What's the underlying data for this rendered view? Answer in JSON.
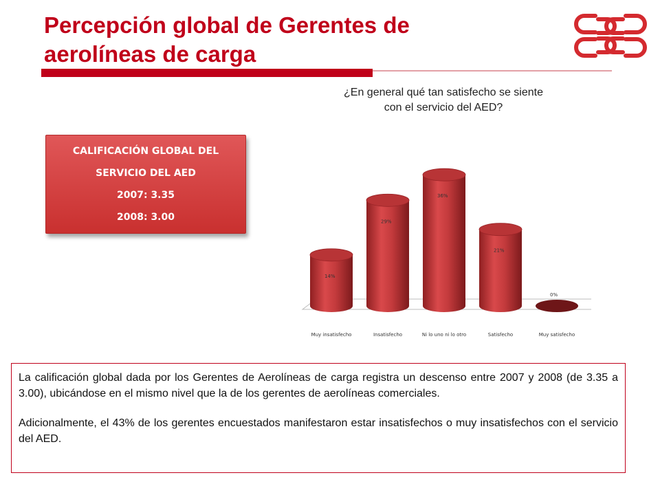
{
  "slide": {
    "title_line1": "Percepción  global de Gerentes de",
    "title_line2": "aerolíneas de carga",
    "brand_color": "#c0001a"
  },
  "score_box": {
    "line1": "CALIFICACIÓN GLOBAL DEL",
    "line2": "SERVICIO DEL AED",
    "line3": "2007: 3.35",
    "line4": "2008: 3.00"
  },
  "question": {
    "line1": "¿En general qué tan satisfecho se siente",
    "line2": "con el servicio del AED?"
  },
  "chart_data": {
    "type": "bar",
    "style": "3d-cylinder",
    "categories": [
      "Muy insatisfecho",
      "Insatisfecho",
      "Ni lo uno ni lo otro",
      "Satisfecho",
      "Muy satisfecho"
    ],
    "values": [
      14,
      29,
      36,
      21,
      0
    ],
    "value_labels": [
      "14%",
      "29%",
      "36%",
      "21%",
      "0%"
    ],
    "unit": "%",
    "ylim": [
      0,
      40
    ],
    "grid": false,
    "legend": "none",
    "bar_color": "#c0393b"
  },
  "note": {
    "p1": "La calificación global dada por los Gerentes de Aerolíneas de carga registra un descenso entre 2007 y 2008 (de 3.35 a 3.00), ubicándose en el mismo nivel que la de los gerentes de aerolíneas comerciales.",
    "p2": "Adicionalmente, el 43% de los gerentes encuestados manifestaron estar insatisfechos o muy insatisfechos con el servicio del AED."
  }
}
